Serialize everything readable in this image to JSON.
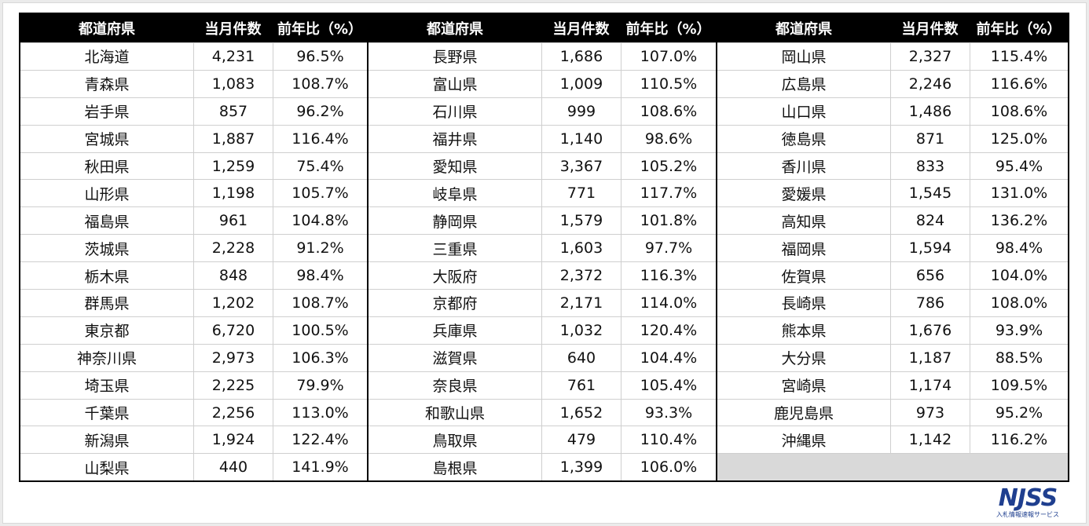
{
  "headers": {
    "pref": "都道府県",
    "count": "当月件数",
    "ratio": "前年比（%）"
  },
  "block1": [
    {
      "pref": "北海道",
      "count": "4,231",
      "ratio": "96.5%"
    },
    {
      "pref": "青森県",
      "count": "1,083",
      "ratio": "108.7%"
    },
    {
      "pref": "岩手県",
      "count": "857",
      "ratio": "96.2%"
    },
    {
      "pref": "宮城県",
      "count": "1,887",
      "ratio": "116.4%"
    },
    {
      "pref": "秋田県",
      "count": "1,259",
      "ratio": "75.4%"
    },
    {
      "pref": "山形県",
      "count": "1,198",
      "ratio": "105.7%"
    },
    {
      "pref": "福島県",
      "count": "961",
      "ratio": "104.8%"
    },
    {
      "pref": "茨城県",
      "count": "2,228",
      "ratio": "91.2%"
    },
    {
      "pref": "栃木県",
      "count": "848",
      "ratio": "98.4%"
    },
    {
      "pref": "群馬県",
      "count": "1,202",
      "ratio": "108.7%"
    },
    {
      "pref": "東京都",
      "count": "6,720",
      "ratio": "100.5%"
    },
    {
      "pref": "神奈川県",
      "count": "2,973",
      "ratio": "106.3%"
    },
    {
      "pref": "埼玉県",
      "count": "2,225",
      "ratio": "79.9%"
    },
    {
      "pref": "千葉県",
      "count": "2,256",
      "ratio": "113.0%"
    },
    {
      "pref": "新潟県",
      "count": "1,924",
      "ratio": "122.4%"
    },
    {
      "pref": "山梨県",
      "count": "440",
      "ratio": "141.9%"
    }
  ],
  "block2": [
    {
      "pref": "長野県",
      "count": "1,686",
      "ratio": "107.0%"
    },
    {
      "pref": "富山県",
      "count": "1,009",
      "ratio": "110.5%"
    },
    {
      "pref": "石川県",
      "count": "999",
      "ratio": "108.6%"
    },
    {
      "pref": "福井県",
      "count": "1,140",
      "ratio": "98.6%"
    },
    {
      "pref": "愛知県",
      "count": "3,367",
      "ratio": "105.2%"
    },
    {
      "pref": "岐阜県",
      "count": "771",
      "ratio": "117.7%"
    },
    {
      "pref": "静岡県",
      "count": "1,579",
      "ratio": "101.8%"
    },
    {
      "pref": "三重県",
      "count": "1,603",
      "ratio": "97.7%"
    },
    {
      "pref": "大阪府",
      "count": "2,372",
      "ratio": "116.3%"
    },
    {
      "pref": "京都府",
      "count": "2,171",
      "ratio": "114.0%"
    },
    {
      "pref": "兵庫県",
      "count": "1,032",
      "ratio": "120.4%"
    },
    {
      "pref": "滋賀県",
      "count": "640",
      "ratio": "104.4%"
    },
    {
      "pref": "奈良県",
      "count": "761",
      "ratio": "105.4%"
    },
    {
      "pref": "和歌山県",
      "count": "1,652",
      "ratio": "93.3%"
    },
    {
      "pref": "鳥取県",
      "count": "479",
      "ratio": "110.4%"
    },
    {
      "pref": "島根県",
      "count": "1,399",
      "ratio": "106.0%"
    }
  ],
  "block3": [
    {
      "pref": "岡山県",
      "count": "2,327",
      "ratio": "115.4%"
    },
    {
      "pref": "広島県",
      "count": "2,246",
      "ratio": "116.6%"
    },
    {
      "pref": "山口県",
      "count": "1,486",
      "ratio": "108.6%"
    },
    {
      "pref": "徳島県",
      "count": "871",
      "ratio": "125.0%"
    },
    {
      "pref": "香川県",
      "count": "833",
      "ratio": "95.4%"
    },
    {
      "pref": "愛媛県",
      "count": "1,545",
      "ratio": "131.0%"
    },
    {
      "pref": "高知県",
      "count": "824",
      "ratio": "136.2%"
    },
    {
      "pref": "福岡県",
      "count": "1,594",
      "ratio": "98.4%"
    },
    {
      "pref": "佐賀県",
      "count": "656",
      "ratio": "104.0%"
    },
    {
      "pref": "長崎県",
      "count": "786",
      "ratio": "108.0%"
    },
    {
      "pref": "熊本県",
      "count": "1,676",
      "ratio": "93.9%"
    },
    {
      "pref": "大分県",
      "count": "1,187",
      "ratio": "88.5%"
    },
    {
      "pref": "宮崎県",
      "count": "1,174",
      "ratio": "109.5%"
    },
    {
      "pref": "鹿児島県",
      "count": "973",
      "ratio": "95.2%"
    },
    {
      "pref": "沖縄県",
      "count": "1,142",
      "ratio": "116.2%"
    }
  ],
  "logo": {
    "mark": "NJSS",
    "subtitle": "入札情報速報サービス"
  },
  "colors": {
    "header_bg": "#000000",
    "filler": "#d9d9d9",
    "logo": "#1f3f8f"
  }
}
